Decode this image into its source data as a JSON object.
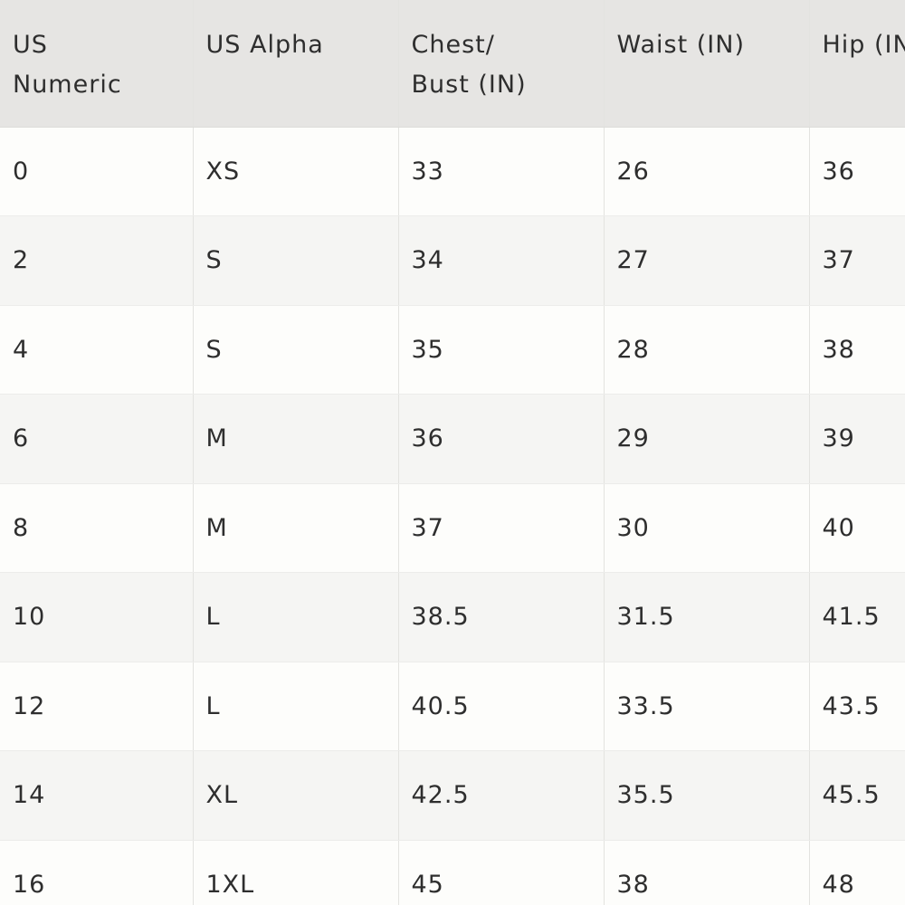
{
  "table": {
    "header": [
      "US\nNumeric",
      "US Alpha",
      "Chest/\nBust (IN)",
      "Waist (IN)",
      "Hip (IN)"
    ],
    "rows": [
      [
        "0",
        "XS",
        "33",
        "26",
        "36"
      ],
      [
        "2",
        "S",
        "34",
        "27",
        "37"
      ],
      [
        "4",
        "S",
        "35",
        "28",
        "38"
      ],
      [
        "6",
        "M",
        "36",
        "29",
        "39"
      ],
      [
        "8",
        "M",
        "37",
        "30",
        "40"
      ],
      [
        "10",
        "L",
        "38.5",
        "31.5",
        "41.5"
      ],
      [
        "12",
        "L",
        "40.5",
        "33.5",
        "43.5"
      ],
      [
        "14",
        "XL",
        "42.5",
        "35.5",
        "45.5"
      ],
      [
        "16",
        "1XL",
        "45",
        "38",
        "48"
      ]
    ]
  }
}
